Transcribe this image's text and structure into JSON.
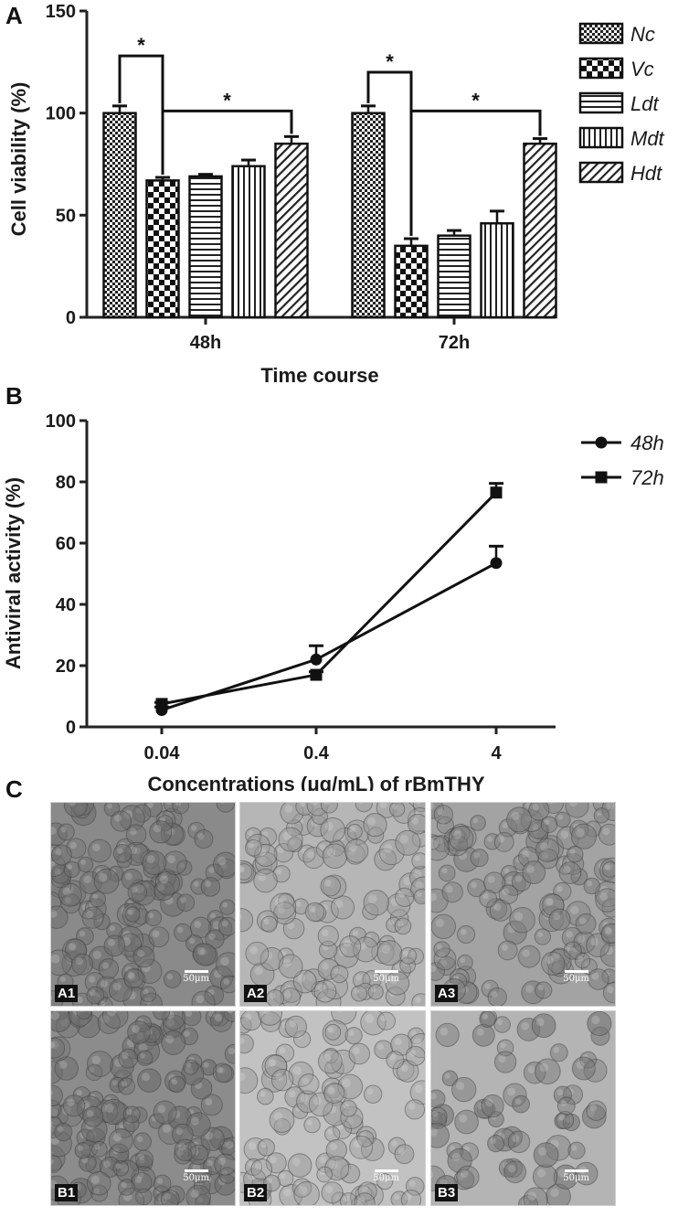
{
  "panels": {
    "a": "A",
    "b": "B",
    "c": "C"
  },
  "chart_data": [
    {
      "type": "bar",
      "panel": "A",
      "title": "",
      "xlabel": "Time course",
      "ylabel": "Cell viability (%)",
      "ylim": [
        0,
        150
      ],
      "yticks": [
        "0",
        "50",
        "100",
        "150"
      ],
      "categories": [
        "48h",
        "72h"
      ],
      "series": [
        {
          "name": "Nc",
          "values": [
            100,
            100
          ],
          "errors": [
            3.5,
            3.5
          ],
          "pattern": "small-check"
        },
        {
          "name": "Vc",
          "values": [
            67,
            35
          ],
          "errors": [
            1.5,
            3.5
          ],
          "pattern": "large-check"
        },
        {
          "name": "Ldt",
          "values": [
            69,
            40
          ],
          "errors": [
            1,
            2.5
          ],
          "pattern": "horizontal-lines"
        },
        {
          "name": "Mdt",
          "values": [
            74,
            46
          ],
          "errors": [
            3,
            6
          ],
          "pattern": "vertical-lines"
        },
        {
          "name": "Hdt",
          "values": [
            85,
            85
          ],
          "errors": [
            3.5,
            2.5
          ],
          "pattern": "diagonal-lines"
        }
      ],
      "significance": [
        {
          "label": "*",
          "category": 0,
          "from_series": 0,
          "to_series": 1,
          "bracket_y": 128
        },
        {
          "label": "*",
          "category": 0,
          "from_series": 1,
          "to_series": 4,
          "bracket_y": 101
        },
        {
          "label": "*",
          "category": 1,
          "from_series": 0,
          "to_series": 1,
          "bracket_y": 120
        },
        {
          "label": "*",
          "category": 1,
          "from_series": 1,
          "to_series": 4,
          "bracket_y": 101
        }
      ],
      "legend_position": "right",
      "grid": false
    },
    {
      "type": "line",
      "panel": "B",
      "title": "",
      "xlabel": "Concentrations (μg/mL) of rBmTHY",
      "ylabel": "Antiviral activity (%)",
      "ylim": [
        0,
        100
      ],
      "yticks": [
        "0",
        "20",
        "40",
        "60",
        "80",
        "100"
      ],
      "categories": [
        "0.04",
        "0.4",
        "4"
      ],
      "series": [
        {
          "name": "48h",
          "marker": "circle",
          "values": [
            5.5,
            22,
            53.5
          ],
          "errors": [
            1,
            4.5,
            5.5
          ]
        },
        {
          "name": "72h",
          "marker": "square",
          "values": [
            7.5,
            17,
            76.5
          ],
          "errors": [
            0.5,
            1,
            3
          ]
        }
      ],
      "legend_position": "top-right",
      "grid": false
    }
  ],
  "micrographs": [
    {
      "label": "A1",
      "scale": "50μm",
      "tone": "#8a8a8a",
      "cell": "#6f6f6f",
      "density": 0.95
    },
    {
      "label": "A2",
      "scale": "50μm",
      "tone": "#b6b6b6",
      "cell": "#9a9a9a",
      "density": 0.8
    },
    {
      "label": "A3",
      "scale": "50μm",
      "tone": "#a3a3a3",
      "cell": "#7f7f7f",
      "density": 0.85
    },
    {
      "label": "B1",
      "scale": "50μm",
      "tone": "#8c8c8c",
      "cell": "#6c6c6c",
      "density": 0.95
    },
    {
      "label": "B2",
      "scale": "50μm",
      "tone": "#c2c2c2",
      "cell": "#9d9d9d",
      "density": 0.7
    },
    {
      "label": "B3",
      "scale": "50μm",
      "tone": "#b4b4b4",
      "cell": "#757575",
      "density": 0.45
    }
  ]
}
